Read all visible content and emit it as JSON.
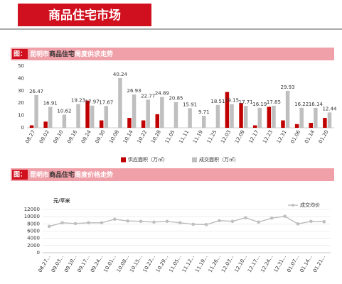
{
  "header": {
    "title": "商品住宅市场"
  },
  "chart_data": [
    {
      "type": "bar",
      "title_prefix": "图：",
      "title": [
        "昆明市",
        "商品住宅",
        "周度供求走势"
      ],
      "categories": [
        "08.27",
        "09.02",
        "09.10",
        "09.16",
        "09.24",
        "09.30",
        "10.08",
        "10.14",
        "10.22",
        "10.28",
        "11.05",
        "11.11",
        "11.19",
        "11.25",
        "12.03",
        "12.09",
        "12.17",
        "12.23",
        "12.31",
        "01.06",
        "01.14",
        "01.20"
      ],
      "series": [
        {
          "name": "供应面积（万㎡）",
          "color": "#c00000",
          "values": [
            2,
            5,
            0,
            0,
            22,
            6,
            0,
            8,
            6,
            11,
            0,
            0,
            0,
            0,
            29,
            20,
            2,
            17,
            6,
            3,
            4,
            8
          ]
        },
        {
          "name": "成交面积（万㎡）",
          "color": "#bfbfbf",
          "values": [
            26.47,
            16.91,
            10.62,
            19.23,
            17.97,
            17.67,
            40.24,
            26.93,
            22.77,
            24.89,
            20.85,
            15.91,
            9.71,
            18.51,
            19.15,
            17.71,
            16.19,
            17.85,
            29.93,
            16.22,
            16.14,
            12.44
          ],
          "show_labels": true
        }
      ],
      "ylim": [
        0,
        50
      ],
      "yticks": [
        0,
        10,
        20,
        30,
        40,
        50
      ],
      "legend": "bottom"
    },
    {
      "type": "line",
      "title_prefix": "图：",
      "title": [
        "昆明市",
        "商品住宅",
        "周度价格走势"
      ],
      "y_label": "元/平米",
      "categories": [
        "08.27...",
        "09.03...",
        "09.10...",
        "09.17...",
        "09.24...",
        "10.01...",
        "10.08...",
        "10.15...",
        "10.22...",
        "10.29...",
        "11.05...",
        "11.12...",
        "11.19...",
        "11.26...",
        "12.03...",
        "12.10...",
        "12.17...",
        "12.24...",
        "12.31...",
        "01.07...",
        "01.14...",
        "01.21..."
      ],
      "series": [
        {
          "name": "成交均价",
          "color": "#bfbfbf",
          "values": [
            7300,
            8300,
            8100,
            8300,
            8300,
            9300,
            8800,
            8700,
            8500,
            8700,
            8300,
            7900,
            7800,
            8900,
            8700,
            9700,
            8500,
            9600,
            10100,
            8000,
            8700,
            8600
          ]
        }
      ],
      "ylim": [
        0,
        12000
      ],
      "yticks": [
        0,
        2000,
        4000,
        6000,
        8000,
        10000,
        12000
      ],
      "grid": true,
      "legend": "top-right"
    }
  ]
}
